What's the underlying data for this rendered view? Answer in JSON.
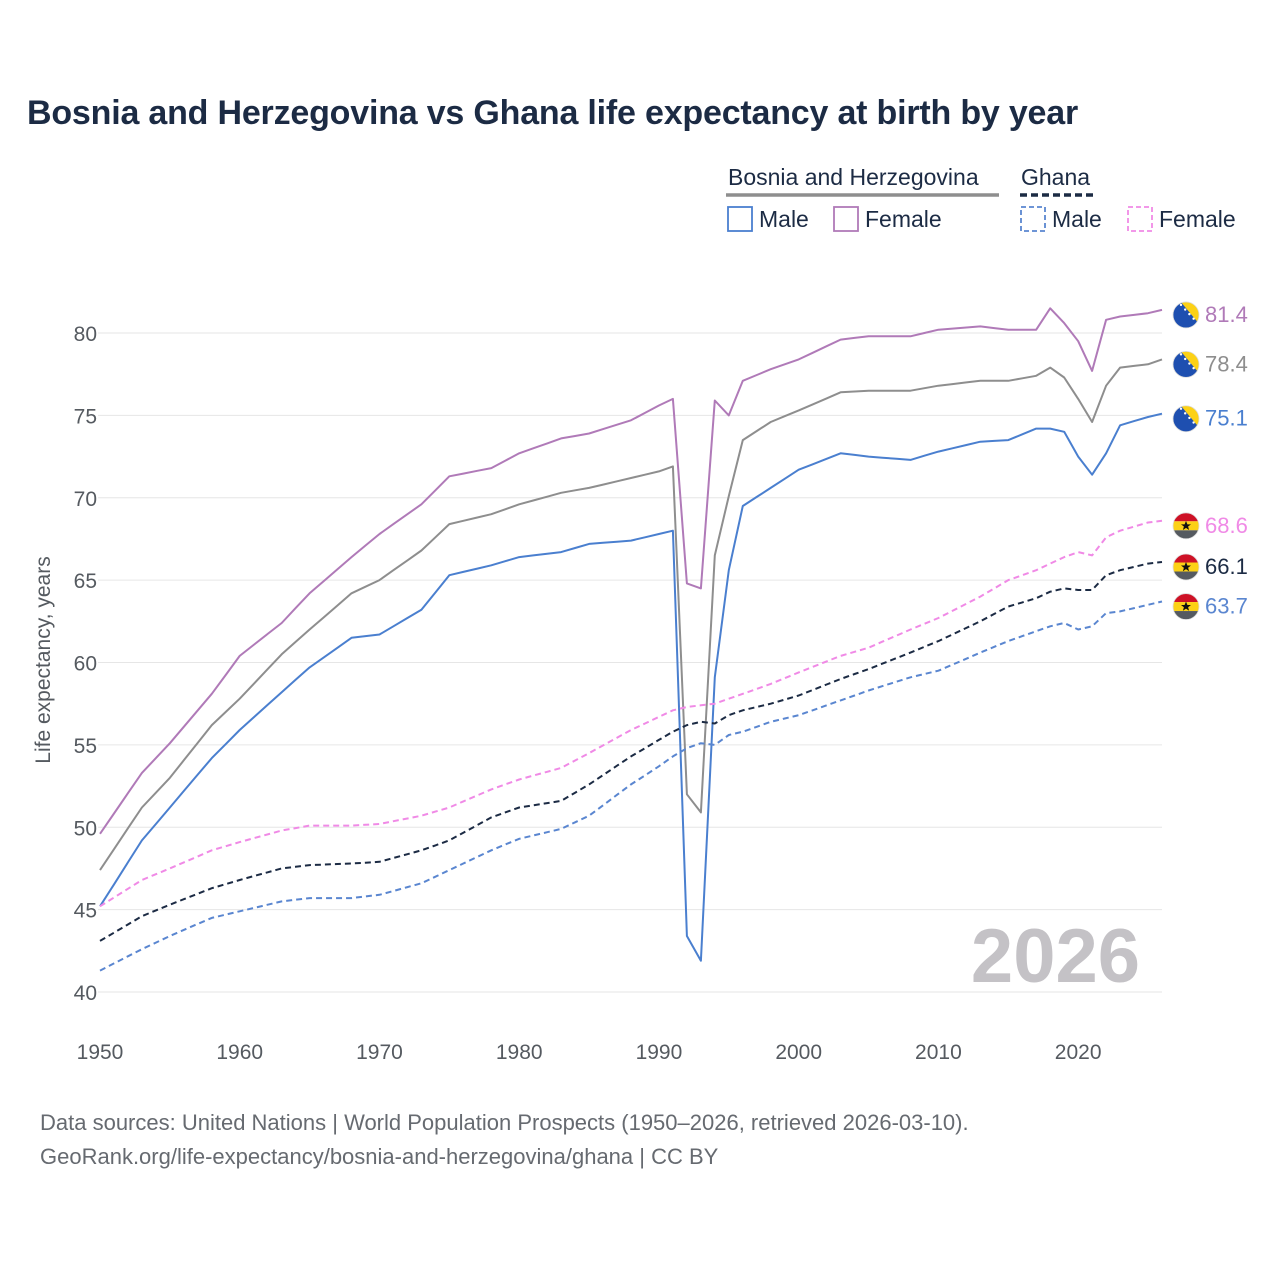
{
  "title": "Bosnia and Herzegovina vs Ghana life expectancy at birth by year",
  "legend": {
    "group1": "Bosnia and Herzegovina",
    "group2": "Ghana",
    "male": "Male",
    "female": "Female"
  },
  "year_watermark": "2026",
  "source_line1": "Data sources: United Nations | World Population Prospects (1950–2026, retrieved 2026-03-10).",
  "source_line2": "GeoRank.org/life-expectancy/bosnia-and-herzegovina/ghana | CC BY",
  "colors": {
    "bih_male": "#4a7fcf",
    "bih_female": "#b07ab8",
    "bih_total": "#8e8e8e",
    "gh_male": "#5a86d0",
    "gh_female": "#f08ae6",
    "gh_total": "#1c2b44",
    "grid": "#e6e6e6",
    "axis_text": "#555a60"
  },
  "chart_data": {
    "type": "line",
    "title": "Bosnia and Herzegovina vs Ghana life expectancy at birth by year",
    "xlabel": "",
    "ylabel": "Life expectancy, years",
    "xlim": [
      1950,
      2026
    ],
    "ylim": [
      40,
      82.5
    ],
    "x_ticks": [
      1950,
      1960,
      1970,
      1980,
      1990,
      2000,
      2010,
      2020
    ],
    "y_ticks": [
      40,
      45,
      50,
      55,
      60,
      65,
      70,
      75,
      80
    ],
    "x_anchor_years": [
      1950,
      1953,
      1955,
      1958,
      1960,
      1963,
      1965,
      1968,
      1970,
      1973,
      1975,
      1978,
      1980,
      1983,
      1985,
      1988,
      1990,
      1991,
      1992,
      1993,
      1994,
      1995,
      1996,
      1998,
      2000,
      2003,
      2005,
      2008,
      2010,
      2013,
      2015,
      2017,
      2018,
      2019,
      2020,
      2021,
      2022,
      2023,
      2025,
      2026
    ],
    "series": [
      {
        "name": "Bosnia and Herzegovina Female",
        "country": "Bosnia and Herzegovina",
        "sex": "Female",
        "style": "solid",
        "end_label": "81.4",
        "values": [
          49.6,
          53.3,
          55.1,
          58.1,
          60.4,
          62.4,
          64.2,
          66.4,
          67.8,
          69.6,
          71.3,
          71.8,
          72.7,
          73.6,
          73.9,
          74.7,
          75.6,
          76.0,
          64.8,
          64.5,
          75.9,
          75.0,
          77.1,
          77.8,
          78.4,
          79.6,
          79.8,
          79.8,
          80.2,
          80.4,
          80.2,
          80.2,
          81.5,
          80.6,
          79.5,
          77.7,
          80.8,
          81.0,
          81.2,
          81.4
        ]
      },
      {
        "name": "Bosnia and Herzegovina Total",
        "country": "Bosnia and Herzegovina",
        "sex": "Total",
        "style": "solid",
        "end_label": "78.4",
        "values": [
          47.4,
          51.2,
          53.0,
          56.2,
          57.8,
          60.5,
          62.0,
          64.2,
          65.0,
          66.8,
          68.4,
          69.0,
          69.6,
          70.3,
          70.6,
          71.2,
          71.6,
          71.9,
          52.0,
          50.9,
          66.5,
          70.1,
          73.5,
          74.6,
          75.3,
          76.4,
          76.5,
          76.5,
          76.8,
          77.1,
          77.1,
          77.4,
          77.9,
          77.3,
          76.0,
          74.6,
          76.8,
          77.9,
          78.1,
          78.4
        ]
      },
      {
        "name": "Bosnia and Herzegovina Male",
        "country": "Bosnia and Herzegovina",
        "sex": "Male",
        "style": "solid",
        "end_label": "75.1",
        "values": [
          45.2,
          49.2,
          51.2,
          54.2,
          55.9,
          58.2,
          59.7,
          61.5,
          61.7,
          63.2,
          65.3,
          65.9,
          66.4,
          66.7,
          67.2,
          67.4,
          67.8,
          68.0,
          43.4,
          41.9,
          59.1,
          65.6,
          69.5,
          70.6,
          71.7,
          72.7,
          72.5,
          72.3,
          72.8,
          73.4,
          73.5,
          74.2,
          74.2,
          74.0,
          72.5,
          71.4,
          72.7,
          74.4,
          74.9,
          75.1
        ]
      },
      {
        "name": "Ghana Female",
        "country": "Ghana",
        "sex": "Female",
        "style": "dashed",
        "end_label": "68.6",
        "values": [
          45.2,
          46.8,
          47.5,
          48.6,
          49.1,
          49.8,
          50.1,
          50.1,
          50.2,
          50.7,
          51.2,
          52.3,
          52.9,
          53.6,
          54.5,
          55.9,
          56.7,
          57.1,
          57.3,
          57.4,
          57.5,
          57.8,
          58.1,
          58.7,
          59.4,
          60.4,
          60.9,
          62.0,
          62.7,
          64.0,
          65.0,
          65.6,
          66.0,
          66.4,
          66.7,
          66.5,
          67.6,
          68.0,
          68.5,
          68.6
        ]
      },
      {
        "name": "Ghana Total",
        "country": "Ghana",
        "sex": "Total",
        "style": "dashed",
        "end_label": "66.1",
        "values": [
          43.1,
          44.6,
          45.3,
          46.3,
          46.8,
          47.5,
          47.7,
          47.8,
          47.9,
          48.6,
          49.2,
          50.6,
          51.2,
          51.6,
          52.6,
          54.3,
          55.3,
          55.8,
          56.2,
          56.4,
          56.3,
          56.8,
          57.1,
          57.5,
          58.0,
          59.0,
          59.6,
          60.6,
          61.3,
          62.5,
          63.4,
          63.9,
          64.3,
          64.5,
          64.4,
          64.4,
          65.3,
          65.6,
          66.0,
          66.1
        ]
      },
      {
        "name": "Ghana Male",
        "country": "Ghana",
        "sex": "Male",
        "style": "dashed",
        "end_label": "63.7",
        "values": [
          41.3,
          42.6,
          43.4,
          44.5,
          44.9,
          45.5,
          45.7,
          45.7,
          45.9,
          46.6,
          47.4,
          48.6,
          49.3,
          49.9,
          50.7,
          52.6,
          53.7,
          54.3,
          54.8,
          55.1,
          55.0,
          55.6,
          55.8,
          56.4,
          56.8,
          57.7,
          58.3,
          59.1,
          59.5,
          60.6,
          61.3,
          61.9,
          62.2,
          62.4,
          62.0,
          62.2,
          63.0,
          63.1,
          63.5,
          63.7
        ]
      }
    ]
  }
}
